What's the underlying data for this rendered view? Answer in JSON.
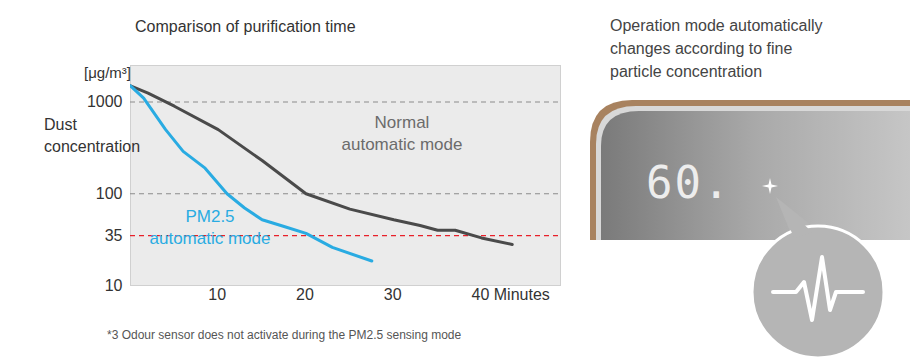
{
  "chart_data": {
    "type": "line",
    "title": "Comparison of purification time",
    "ylabel": "Dust\nconcentration",
    "y_unit": "[μg/m³]",
    "log": "y",
    "xlim": [
      0,
      49
    ],
    "xticks": [
      10,
      20,
      30,
      {
        "value": 40,
        "label": "40 Minutes"
      }
    ],
    "ylim": [
      10,
      2500
    ],
    "yticks": [
      10,
      35,
      100,
      1000
    ],
    "hlines": [
      {
        "y": 1000,
        "color": "#8c8c8c",
        "line_style": "dashed"
      },
      {
        "y": 100,
        "color": "#8c8c8c",
        "line_style": "dashed"
      },
      {
        "y": 35,
        "color": "#e8202a",
        "line_style": "dashed"
      }
    ],
    "series": [
      {
        "name": "Normal\nautomatic mode",
        "color": "#4a4a4a",
        "x": [
          0,
          2,
          5,
          10,
          15,
          20,
          25,
          30,
          33,
          35,
          37,
          40,
          43.5
        ],
        "values": [
          1500,
          1250,
          900,
          500,
          230,
          100,
          68,
          52,
          45,
          40,
          40,
          33,
          28
        ]
      },
      {
        "name": "PM2.5\nautomatic mode",
        "color": "#29abe2",
        "x": [
          0,
          1.5,
          4,
          6,
          8.5,
          11,
          13,
          15,
          17.5,
          20,
          23,
          27.5
        ],
        "values": [
          1500,
          1100,
          500,
          290,
          190,
          100,
          70,
          52,
          44,
          37,
          26,
          18.5
        ]
      }
    ],
    "footnote": "*3 Odour sensor does not activate during the PM2.5 sensing mode"
  },
  "side_panel": {
    "caption": "Operation mode automatically\nchanges according to fine\nparticle concentration",
    "display": "60."
  }
}
